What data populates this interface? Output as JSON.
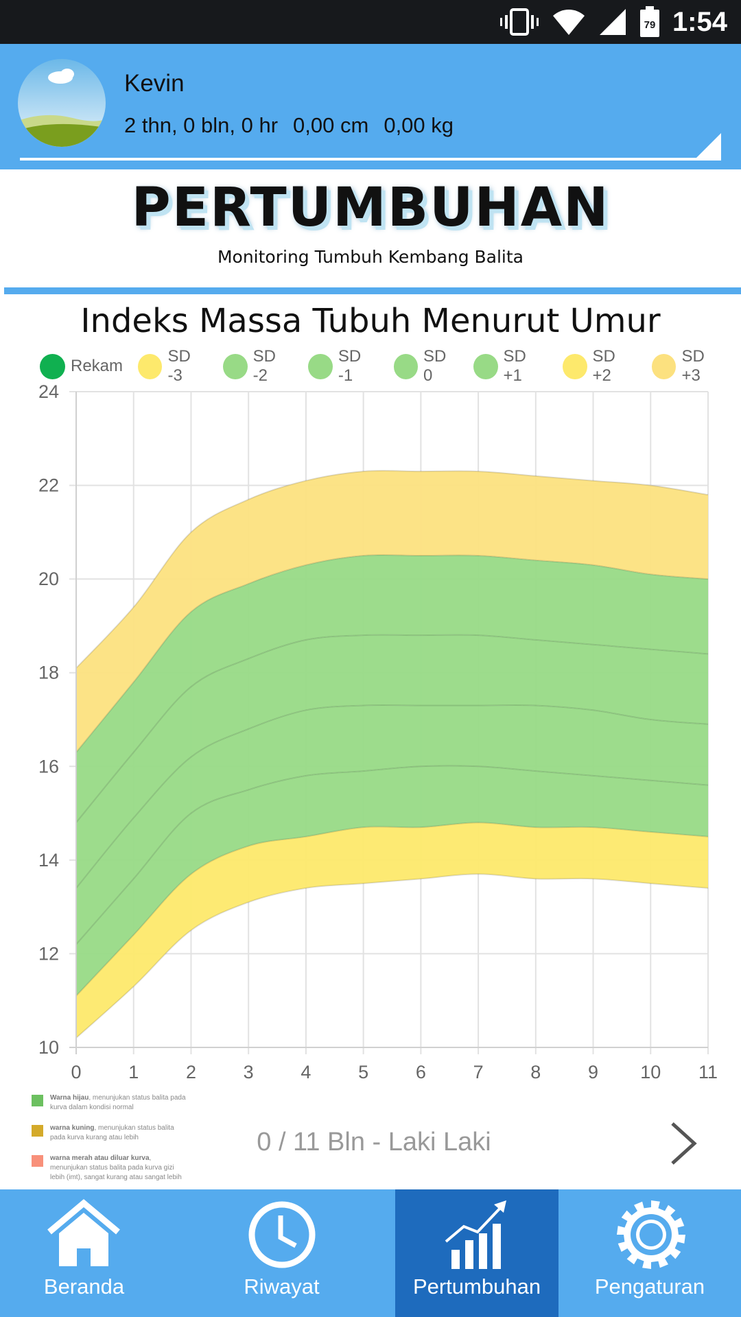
{
  "status_bar": {
    "time": "1:54",
    "battery": "79",
    "icons": [
      "vibrate-icon",
      "wifi-icon",
      "signal-icon",
      "battery-icon"
    ]
  },
  "profile": {
    "name": "Kevin",
    "age": "2 thn, 0 bln, 0 hr",
    "height": "0,00 cm",
    "weight": "0,00 kg"
  },
  "header": {
    "title": "PERTUMBUHAN",
    "subtitle": "Monitoring Tumbuh Kembang Balita"
  },
  "colors": {
    "primary": "#55abee",
    "primary_dark": "#1e6bbd",
    "green_band": "#98da86",
    "yellow_band": "#feea6d",
    "orange_band": "#fce17f"
  },
  "chart_data": {
    "type": "area",
    "title": "Indeks Massa Tubuh Menurut Umur",
    "xlabel": "",
    "ylabel": "",
    "x": [
      0,
      1,
      2,
      3,
      4,
      5,
      6,
      7,
      8,
      9,
      10,
      11
    ],
    "xlim": [
      0,
      11
    ],
    "ylim": [
      10,
      24
    ],
    "yticks": [
      10,
      12,
      14,
      16,
      18,
      20,
      22,
      24
    ],
    "grid": true,
    "legend_position": "top",
    "legend": [
      {
        "name": "Rekam",
        "color": "#10b050"
      },
      {
        "name": "SD -3",
        "color": "#fde96c"
      },
      {
        "name": "SD -2",
        "color": "#98da86"
      },
      {
        "name": "SD -1",
        "color": "#98da86"
      },
      {
        "name": "SD 0",
        "color": "#98da86"
      },
      {
        "name": "SD +1",
        "color": "#98da86"
      },
      {
        "name": "SD +2",
        "color": "#fde96c"
      },
      {
        "name": "SD +3",
        "color": "#fce17f"
      }
    ],
    "series": [
      {
        "name": "SD -3",
        "values": [
          10.2,
          11.3,
          12.5,
          13.1,
          13.4,
          13.5,
          13.6,
          13.7,
          13.6,
          13.6,
          13.5,
          13.4
        ]
      },
      {
        "name": "SD -2",
        "values": [
          11.1,
          12.4,
          13.7,
          14.3,
          14.5,
          14.7,
          14.7,
          14.8,
          14.7,
          14.7,
          14.6,
          14.5
        ]
      },
      {
        "name": "SD -1",
        "values": [
          12.2,
          13.6,
          15.0,
          15.5,
          15.8,
          15.9,
          16.0,
          16.0,
          15.9,
          15.8,
          15.7,
          15.6
        ]
      },
      {
        "name": "SD 0",
        "values": [
          13.4,
          14.9,
          16.2,
          16.8,
          17.2,
          17.3,
          17.3,
          17.3,
          17.3,
          17.2,
          17.0,
          16.9
        ]
      },
      {
        "name": "SD +1",
        "values": [
          14.8,
          16.3,
          17.7,
          18.3,
          18.7,
          18.8,
          18.8,
          18.8,
          18.7,
          18.6,
          18.5,
          18.4
        ]
      },
      {
        "name": "SD +2",
        "values": [
          16.3,
          17.8,
          19.3,
          19.9,
          20.3,
          20.5,
          20.5,
          20.5,
          20.4,
          20.3,
          20.1,
          20.0
        ]
      },
      {
        "name": "SD +3",
        "values": [
          18.1,
          19.4,
          21.0,
          21.7,
          22.1,
          22.3,
          22.3,
          22.3,
          22.2,
          22.1,
          22.0,
          21.8
        ]
      }
    ]
  },
  "notes": [
    {
      "title": "Warna hijau",
      "text": ", menunjukan status balita pada kurva dalam kondisi normal",
      "color": "#6cc060"
    },
    {
      "title": "warna kuning",
      "text": ", menunjukan status balita pada kurva kurang atau lebih",
      "color": "#d4aa2a"
    },
    {
      "title": "warna merah atau diluar kurva",
      "text": ", menunjukan status balita pada kurva gizi lebih (imt), sangat kurang atau sangat lebih",
      "color": "#f8907a"
    }
  ],
  "pager": {
    "label": "0 / 11 Bln - Laki Laki"
  },
  "nav": [
    {
      "label": "Beranda",
      "icon": "home-icon",
      "active": false
    },
    {
      "label": "Riwayat",
      "icon": "clock-icon",
      "active": false
    },
    {
      "label": "Pertumbuhan",
      "icon": "chart-icon",
      "active": true
    },
    {
      "label": "Pengaturan",
      "icon": "gear-icon",
      "active": false
    }
  ]
}
